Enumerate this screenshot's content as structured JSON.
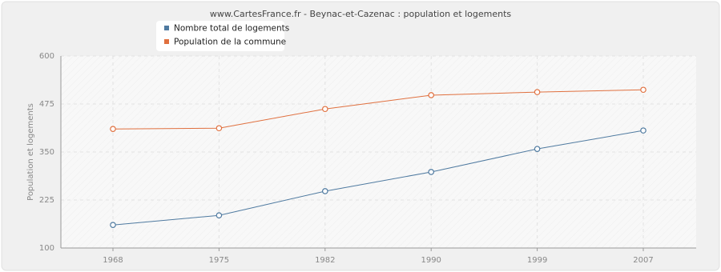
{
  "chart_data": {
    "type": "line",
    "title": "www.CartesFrance.fr - Beynac-et-Cazenac : population et logements",
    "ylabel": "Population et logements",
    "categories": [
      "1968",
      "1975",
      "1982",
      "1990",
      "1999",
      "2007"
    ],
    "series": [
      {
        "name": "Nombre total de logements",
        "color": "#4f7aa0",
        "values": [
          160,
          185,
          248,
          298,
          358,
          406
        ]
      },
      {
        "name": "Population de la commune",
        "color": "#e0703f",
        "values": [
          410,
          412,
          462,
          498,
          506,
          512
        ]
      }
    ],
    "ylim": [
      100,
      600
    ],
    "yticks": [
      100,
      225,
      350,
      475,
      600
    ],
    "grid": true
  }
}
